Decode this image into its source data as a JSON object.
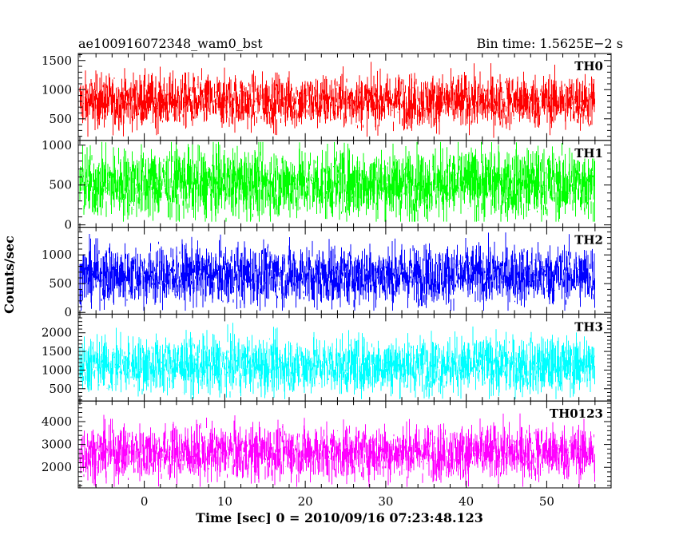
{
  "chart_data": {
    "type": "line",
    "title_left": "ae100916072348_wam0_bst",
    "title_right": "Bin time: 1.5625E−2 s",
    "xlabel": "Time [sec] 0 = 2010/09/16 07:23:48.123",
    "ylabel": "Counts/sec",
    "xlim": [
      -8.2,
      58.0
    ],
    "data_x_range": [
      -8.0,
      56.0
    ],
    "x_ticks": [
      0,
      10,
      20,
      30,
      40,
      50
    ],
    "x_tick_labels": [
      "0",
      "10",
      "20",
      "30",
      "40",
      "50"
    ],
    "x_minor_step": 2,
    "grid": false,
    "legend": "none",
    "panels": [
      {
        "name": "TH0",
        "color": "#ff0000",
        "ylim": [
          130,
          1620
        ],
        "y_ticks": [
          500,
          1000,
          1500
        ],
        "y_tick_labels": [
          "500",
          "1000",
          "1500"
        ],
        "y_minor_step": 100,
        "series_stats": {
          "mean": 800,
          "spread": 230,
          "min": 150,
          "max": 1600
        }
      },
      {
        "name": "TH1",
        "color": "#00ff00",
        "ylim": [
          -30,
          1060
        ],
        "y_ticks": [
          0,
          500,
          1000
        ],
        "y_tick_labels": [
          "0",
          "500",
          "1000"
        ],
        "y_minor_step": 100,
        "series_stats": {
          "mean": 520,
          "spread": 220,
          "min": 40,
          "max": 1040
        }
      },
      {
        "name": "TH2",
        "color": "#0000ff",
        "ylim": [
          -30,
          1480
        ],
        "y_ticks": [
          0,
          500,
          1000
        ],
        "y_tick_labels": [
          "0",
          "500",
          "1000"
        ],
        "y_minor_step": 100,
        "series_stats": {
          "mean": 650,
          "spread": 260,
          "min": 30,
          "max": 1450
        }
      },
      {
        "name": "TH3",
        "color": "#00ffff",
        "ylim": [
          170,
          2500
        ],
        "y_ticks": [
          500,
          1000,
          1500,
          2000
        ],
        "y_tick_labels": [
          "500",
          "1000",
          "1500",
          "2000"
        ],
        "y_minor_step": 100,
        "series_stats": {
          "mean": 1130,
          "spread": 380,
          "min": 220,
          "max": 2450
        }
      },
      {
        "name": "TH0123",
        "color": "#ff00ff",
        "ylim": [
          1100,
          4900
        ],
        "y_ticks": [
          2000,
          3000,
          4000
        ],
        "y_tick_labels": [
          "2000",
          "3000",
          "4000"
        ],
        "y_minor_step": 200,
        "series_stats": {
          "mean": 2650,
          "spread": 600,
          "min": 1150,
          "max": 4850
        }
      }
    ]
  }
}
